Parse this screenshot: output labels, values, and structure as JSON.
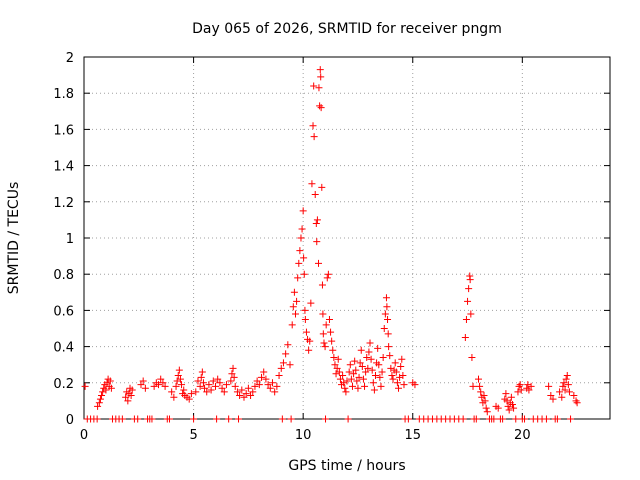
{
  "chart_data": {
    "type": "scatter",
    "title": "Day 065 of 2026, SRMTID for receiver pngm",
    "xlabel": "GPS time / hours",
    "ylabel": "SRMTID / TECUs",
    "xlim": [
      0,
      24
    ],
    "ylim": [
      0,
      2
    ],
    "xticks": [
      0,
      5,
      10,
      15,
      20
    ],
    "xtick_labels": [
      "0",
      "5",
      "10",
      "15",
      "20"
    ],
    "yticks": [
      0,
      0.2,
      0.4,
      0.6,
      0.8,
      1,
      1.2,
      1.4,
      1.6,
      1.8,
      2
    ],
    "ytick_labels": [
      "0",
      "0.2",
      "0.4",
      "0.6",
      "0.8",
      "1",
      "1.2",
      "1.4",
      "1.6",
      "1.8",
      "2"
    ],
    "grid": true,
    "marker": "+",
    "color": "#ff0000",
    "series": [
      {
        "name": "SRMTID",
        "points": [
          [
            0.05,
            0.18
          ],
          [
            0.15,
            0.0
          ],
          [
            0.3,
            0.0
          ],
          [
            0.45,
            0.0
          ],
          [
            0.6,
            0.0
          ],
          [
            0.62,
            0.07
          ],
          [
            0.7,
            0.09
          ],
          [
            0.75,
            0.11
          ],
          [
            0.8,
            0.13
          ],
          [
            0.85,
            0.15
          ],
          [
            0.9,
            0.17
          ],
          [
            0.95,
            0.19
          ],
          [
            1.0,
            0.16
          ],
          [
            1.05,
            0.2
          ],
          [
            1.1,
            0.22
          ],
          [
            1.15,
            0.18
          ],
          [
            1.2,
            0.21
          ],
          [
            1.25,
            0.17
          ],
          [
            1.3,
            0.0
          ],
          [
            1.45,
            0.0
          ],
          [
            1.6,
            0.0
          ],
          [
            1.75,
            0.0
          ],
          [
            1.9,
            0.12
          ],
          [
            1.95,
            0.15
          ],
          [
            2.0,
            0.1
          ],
          [
            2.05,
            0.14
          ],
          [
            2.1,
            0.17
          ],
          [
            2.15,
            0.13
          ],
          [
            2.2,
            0.16
          ],
          [
            2.3,
            0.0
          ],
          [
            2.45,
            0.0
          ],
          [
            2.6,
            0.19
          ],
          [
            2.7,
            0.21
          ],
          [
            2.8,
            0.17
          ],
          [
            2.9,
            0.0
          ],
          [
            3.0,
            0.0
          ],
          [
            3.1,
            0.0
          ],
          [
            3.2,
            0.18
          ],
          [
            3.3,
            0.2
          ],
          [
            3.4,
            0.19
          ],
          [
            3.5,
            0.22
          ],
          [
            3.6,
            0.2
          ],
          [
            3.7,
            0.18
          ],
          [
            3.8,
            0.0
          ],
          [
            3.9,
            0.0
          ],
          [
            4.0,
            0.15
          ],
          [
            4.1,
            0.12
          ],
          [
            4.2,
            0.18
          ],
          [
            4.25,
            0.21
          ],
          [
            4.3,
            0.24
          ],
          [
            4.35,
            0.27
          ],
          [
            4.4,
            0.22
          ],
          [
            4.45,
            0.19
          ],
          [
            4.5,
            0.14
          ],
          [
            4.55,
            0.16
          ],
          [
            4.6,
            0.13
          ],
          [
            4.7,
            0.12
          ],
          [
            4.8,
            0.11
          ],
          [
            4.9,
            0.14
          ],
          [
            5.0,
            0.0
          ],
          [
            5.1,
            0.15
          ],
          [
            5.2,
            0.21
          ],
          [
            5.3,
            0.18
          ],
          [
            5.35,
            0.23
          ],
          [
            5.4,
            0.26
          ],
          [
            5.45,
            0.2
          ],
          [
            5.5,
            0.17
          ],
          [
            5.6,
            0.15
          ],
          [
            5.7,
            0.19
          ],
          [
            5.8,
            0.16
          ],
          [
            5.9,
            0.21
          ],
          [
            6.0,
            0.18
          ],
          [
            6.05,
            0.0
          ],
          [
            6.1,
            0.22
          ],
          [
            6.2,
            0.2
          ],
          [
            6.3,
            0.17
          ],
          [
            6.4,
            0.15
          ],
          [
            6.5,
            0.19
          ],
          [
            6.6,
            0.0
          ],
          [
            6.7,
            0.21
          ],
          [
            6.75,
            0.25
          ],
          [
            6.8,
            0.28
          ],
          [
            6.85,
            0.23
          ],
          [
            6.9,
            0.18
          ],
          [
            7.0,
            0.15
          ],
          [
            7.05,
            0.0
          ],
          [
            7.1,
            0.13
          ],
          [
            7.2,
            0.16
          ],
          [
            7.3,
            0.12
          ],
          [
            7.4,
            0.14
          ],
          [
            7.5,
            0.17
          ],
          [
            7.6,
            0.13
          ],
          [
            7.7,
            0.15
          ],
          [
            7.8,
            0.18
          ],
          [
            7.9,
            0.21
          ],
          [
            8.0,
            0.19
          ],
          [
            8.1,
            0.23
          ],
          [
            8.2,
            0.26
          ],
          [
            8.3,
            0.22
          ],
          [
            8.4,
            0.19
          ],
          [
            8.5,
            0.17
          ],
          [
            8.6,
            0.2
          ],
          [
            8.7,
            0.15
          ],
          [
            8.8,
            0.18
          ],
          [
            8.9,
            0.24
          ],
          [
            9.0,
            0.28
          ],
          [
            9.05,
            0.0
          ],
          [
            9.1,
            0.31
          ],
          [
            9.2,
            0.36
          ],
          [
            9.3,
            0.41
          ],
          [
            9.4,
            0.3
          ],
          [
            9.45,
            0.0
          ],
          [
            9.5,
            0.52
          ],
          [
            9.55,
            0.62
          ],
          [
            9.6,
            0.7
          ],
          [
            9.65,
            0.58
          ],
          [
            9.7,
            0.65
          ],
          [
            9.75,
            0.78
          ],
          [
            9.8,
            0.86
          ],
          [
            9.85,
            0.93
          ],
          [
            9.9,
            1.0
          ],
          [
            9.95,
            1.05
          ],
          [
            10.0,
            1.15
          ],
          [
            10.02,
            0.89
          ],
          [
            10.05,
            0.8
          ],
          [
            10.08,
            0.6
          ],
          [
            10.1,
            0.55
          ],
          [
            10.15,
            0.48
          ],
          [
            10.2,
            0.44
          ],
          [
            10.25,
            0.38
          ],
          [
            10.3,
            0.43
          ],
          [
            10.35,
            0.64
          ],
          [
            10.4,
            1.3
          ],
          [
            10.45,
            1.62
          ],
          [
            10.48,
            1.84
          ],
          [
            10.5,
            1.56
          ],
          [
            10.55,
            1.24
          ],
          [
            10.6,
            1.08
          ],
          [
            10.62,
            0.98
          ],
          [
            10.65,
            1.1
          ],
          [
            10.7,
            0.86
          ],
          [
            10.72,
            1.83
          ],
          [
            10.75,
            1.73
          ],
          [
            10.78,
            1.93
          ],
          [
            10.8,
            1.89
          ],
          [
            10.82,
            1.72
          ],
          [
            10.85,
            1.28
          ],
          [
            10.88,
            0.74
          ],
          [
            10.9,
            0.58
          ],
          [
            10.92,
            0.47
          ],
          [
            10.95,
            0.42
          ],
          [
            11.0,
            0.4
          ],
          [
            11.02,
            0.0
          ],
          [
            11.05,
            0.52
          ],
          [
            11.1,
            0.78
          ],
          [
            11.15,
            0.8
          ],
          [
            11.2,
            0.55
          ],
          [
            11.25,
            0.48
          ],
          [
            11.3,
            0.43
          ],
          [
            11.35,
            0.38
          ],
          [
            11.4,
            0.34
          ],
          [
            11.45,
            0.3
          ],
          [
            11.5,
            0.25
          ],
          [
            11.55,
            0.28
          ],
          [
            11.6,
            0.33
          ],
          [
            11.65,
            0.26
          ],
          [
            11.7,
            0.22
          ],
          [
            11.75,
            0.19
          ],
          [
            11.8,
            0.24
          ],
          [
            11.85,
            0.2
          ],
          [
            11.9,
            0.17
          ],
          [
            11.95,
            0.15
          ],
          [
            12.0,
            0.21
          ],
          [
            12.05,
            0.0
          ],
          [
            12.1,
            0.26
          ],
          [
            12.15,
            0.3
          ],
          [
            12.2,
            0.22
          ],
          [
            12.25,
            0.18
          ],
          [
            12.3,
            0.25
          ],
          [
            12.35,
            0.32
          ],
          [
            12.4,
            0.27
          ],
          [
            12.45,
            0.21
          ],
          [
            12.5,
            0.17
          ],
          [
            12.55,
            0.23
          ],
          [
            12.6,
            0.31
          ],
          [
            12.65,
            0.38
          ],
          [
            12.7,
            0.29
          ],
          [
            12.75,
            0.22
          ],
          [
            12.8,
            0.18
          ],
          [
            12.85,
            0.26
          ],
          [
            12.9,
            0.34
          ],
          [
            12.95,
            0.28
          ],
          [
            13.0,
            0.37
          ],
          [
            13.05,
            0.42
          ],
          [
            13.1,
            0.33
          ],
          [
            13.15,
            0.27
          ],
          [
            13.2,
            0.2
          ],
          [
            13.25,
            0.16
          ],
          [
            13.3,
            0.24
          ],
          [
            13.35,
            0.31
          ],
          [
            13.4,
            0.39
          ],
          [
            13.45,
            0.3
          ],
          [
            13.5,
            0.23
          ],
          [
            13.55,
            0.18
          ],
          [
            13.6,
            0.26
          ],
          [
            13.65,
            0.34
          ],
          [
            13.7,
            0.5
          ],
          [
            13.75,
            0.58
          ],
          [
            13.8,
            0.67
          ],
          [
            13.82,
            0.62
          ],
          [
            13.85,
            0.55
          ],
          [
            13.88,
            0.47
          ],
          [
            13.9,
            0.4
          ],
          [
            13.95,
            0.35
          ],
          [
            14.0,
            0.28
          ],
          [
            14.05,
            0.24
          ],
          [
            14.1,
            0.22
          ],
          [
            14.15,
            0.27
          ],
          [
            14.2,
            0.31
          ],
          [
            14.25,
            0.26
          ],
          [
            14.3,
            0.2
          ],
          [
            14.35,
            0.17
          ],
          [
            14.4,
            0.23
          ],
          [
            14.45,
            0.29
          ],
          [
            14.5,
            0.33
          ],
          [
            14.55,
            0.24
          ],
          [
            14.6,
            0.19
          ],
          [
            14.65,
            0.0
          ],
          [
            14.8,
            0.0
          ],
          [
            15.0,
            0.2
          ],
          [
            15.1,
            0.19
          ],
          [
            15.3,
            0.0
          ],
          [
            15.5,
            0.0
          ],
          [
            15.7,
            0.0
          ],
          [
            15.9,
            0.0
          ],
          [
            16.1,
            0.0
          ],
          [
            16.3,
            0.0
          ],
          [
            16.5,
            0.0
          ],
          [
            16.7,
            0.0
          ],
          [
            16.9,
            0.0
          ],
          [
            17.1,
            0.0
          ],
          [
            17.3,
            0.0
          ],
          [
            17.4,
            0.45
          ],
          [
            17.45,
            0.55
          ],
          [
            17.5,
            0.65
          ],
          [
            17.55,
            0.72
          ],
          [
            17.6,
            0.79
          ],
          [
            17.62,
            0.77
          ],
          [
            17.65,
            0.58
          ],
          [
            17.7,
            0.34
          ],
          [
            17.75,
            0.18
          ],
          [
            17.8,
            0.0
          ],
          [
            17.9,
            0.0
          ],
          [
            18.0,
            0.22
          ],
          [
            18.05,
            0.18
          ],
          [
            18.1,
            0.15
          ],
          [
            18.15,
            0.12
          ],
          [
            18.2,
            0.09
          ],
          [
            18.25,
            0.13
          ],
          [
            18.3,
            0.1
          ],
          [
            18.35,
            0.06
          ],
          [
            18.4,
            0.04
          ],
          [
            18.5,
            0.0
          ],
          [
            18.6,
            0.0
          ],
          [
            18.7,
            0.0
          ],
          [
            18.8,
            0.07
          ],
          [
            18.9,
            0.06
          ],
          [
            19.0,
            0.0
          ],
          [
            19.1,
            0.0
          ],
          [
            19.2,
            0.11
          ],
          [
            19.25,
            0.14
          ],
          [
            19.3,
            0.1
          ],
          [
            19.35,
            0.07
          ],
          [
            19.4,
            0.05
          ],
          [
            19.45,
            0.09
          ],
          [
            19.5,
            0.12
          ],
          [
            19.55,
            0.08
          ],
          [
            19.6,
            0.06
          ],
          [
            19.7,
            0.0
          ],
          [
            19.8,
            0.15
          ],
          [
            19.85,
            0.18
          ],
          [
            19.9,
            0.19
          ],
          [
            19.95,
            0.16
          ],
          [
            20.0,
            0.0
          ],
          [
            20.1,
            0.0
          ],
          [
            20.2,
            0.17
          ],
          [
            20.25,
            0.19
          ],
          [
            20.3,
            0.16
          ],
          [
            20.4,
            0.18
          ],
          [
            20.5,
            0.0
          ],
          [
            20.7,
            0.0
          ],
          [
            20.9,
            0.0
          ],
          [
            21.1,
            0.0
          ],
          [
            21.2,
            0.18
          ],
          [
            21.3,
            0.13
          ],
          [
            21.4,
            0.11
          ],
          [
            21.5,
            0.0
          ],
          [
            21.6,
            0.0
          ],
          [
            21.7,
            0.15
          ],
          [
            21.8,
            0.12
          ],
          [
            21.85,
            0.18
          ],
          [
            21.9,
            0.2
          ],
          [
            21.95,
            0.16
          ],
          [
            22.0,
            0.22
          ],
          [
            22.05,
            0.24
          ],
          [
            22.1,
            0.19
          ],
          [
            22.15,
            0.15
          ],
          [
            22.2,
            0.0
          ],
          [
            22.35,
            0.13
          ],
          [
            22.45,
            0.1
          ],
          [
            22.5,
            0.09
          ]
        ]
      }
    ]
  }
}
